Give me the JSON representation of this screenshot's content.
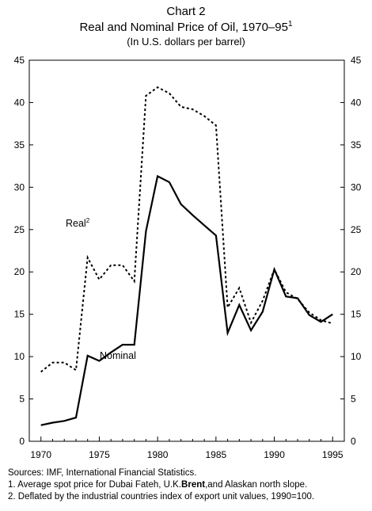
{
  "header": {
    "chart_label": "Chart 2",
    "title": "Real and Nominal Price of Oil, 1970–95",
    "title_sup": "1",
    "subtitle": "(In U.S. dollars per barrel)"
  },
  "notes": {
    "sources": "Sources: IMF, International Financial Statistics.",
    "note1_prefix": "1. Average spot price for Dubai Fateh, U.K.",
    "note1_bold": "Brent",
    "note1_suffix": ",and Alaskan north slope.",
    "note2": "2. Deflated by the industrial countries index of export unit values, 1990=100."
  },
  "colors": {
    "lines": "#000000",
    "background": "#ffffff"
  },
  "chart_data": {
    "type": "line",
    "xlim": [
      1969,
      1996
    ],
    "ylim": [
      0,
      45
    ],
    "xticks": [
      1970,
      1975,
      1980,
      1985,
      1990,
      1995
    ],
    "yticks": [
      0,
      5,
      10,
      15,
      20,
      25,
      30,
      35,
      40,
      45
    ],
    "yaxis_right": true,
    "grid": false,
    "legend": "inline labels",
    "series": [
      {
        "name": "Real",
        "name_sup": "2",
        "style": "dotted",
        "x": [
          1970,
          1971,
          1972,
          1973,
          1974,
          1975,
          1976,
          1977,
          1978,
          1979,
          1980,
          1981,
          1982,
          1983,
          1984,
          1985,
          1986,
          1987,
          1988,
          1989,
          1990,
          1991,
          1992,
          1993,
          1994,
          1995
        ],
        "y": [
          8.2,
          9.3,
          9.3,
          8.4,
          21.7,
          19.1,
          20.8,
          20.8,
          18.9,
          40.8,
          41.8,
          41.1,
          39.5,
          39.2,
          38.4,
          37.3,
          15.8,
          18.1,
          14.0,
          16.6,
          20.3,
          17.6,
          16.8,
          15.2,
          14.3,
          13.9
        ]
      },
      {
        "name": "Nominal",
        "style": "solid",
        "x": [
          1970,
          1971,
          1972,
          1973,
          1974,
          1975,
          1976,
          1977,
          1978,
          1979,
          1980,
          1981,
          1982,
          1983,
          1984,
          1985,
          1986,
          1987,
          1988,
          1989,
          1990,
          1991,
          1992,
          1993,
          1994,
          1995
        ],
        "y": [
          1.9,
          2.2,
          2.4,
          2.8,
          10.1,
          9.5,
          10.5,
          11.4,
          11.4,
          24.8,
          31.3,
          30.6,
          28.0,
          26.7,
          25.5,
          24.3,
          12.8,
          16.1,
          13.1,
          15.3,
          20.3,
          17.1,
          16.9,
          14.9,
          14.1,
          15.0
        ]
      }
    ]
  }
}
